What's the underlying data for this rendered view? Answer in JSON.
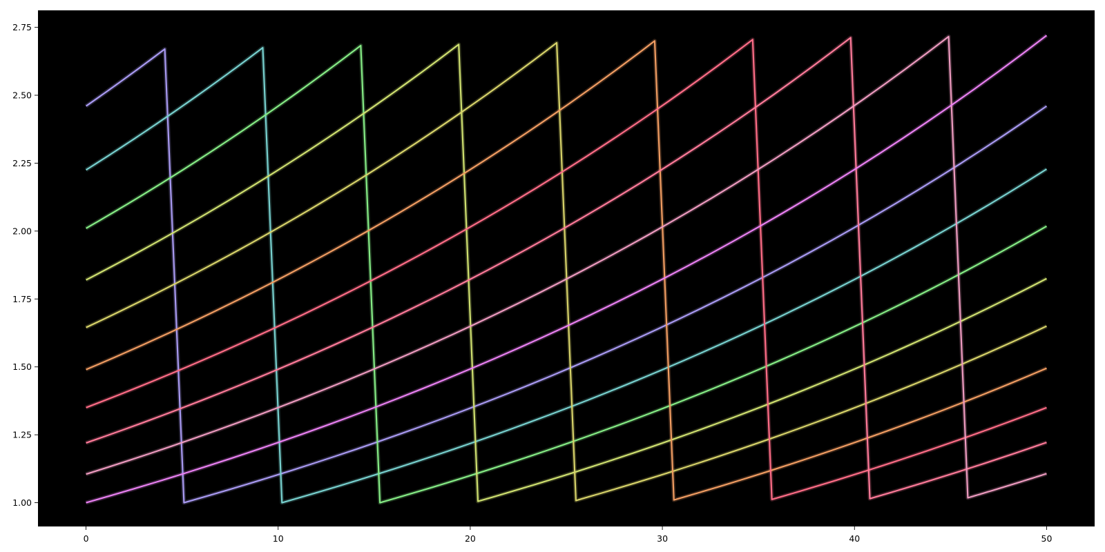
{
  "chart_data": {
    "type": "line",
    "title": "",
    "xlabel": "",
    "ylabel": "",
    "xlim": [
      -2.5,
      52.5
    ],
    "ylim": [
      0.9125,
      2.8125
    ],
    "xticks": [
      0,
      10,
      20,
      30,
      40,
      50
    ],
    "yticks": [
      1.0,
      1.25,
      1.5,
      1.75,
      2.0,
      2.25,
      2.5,
      2.75
    ],
    "xtick_labels": [
      "0",
      "10",
      "20",
      "30",
      "40",
      "50"
    ],
    "ytick_labels": [
      "1.00",
      "1.25",
      "1.50",
      "1.75",
      "2.00",
      "2.25",
      "2.50",
      "2.75"
    ],
    "grid": false,
    "legend": false,
    "background_color": "#000000",
    "series": [
      {
        "color": "#a99af2",
        "points": [
          [
            0,
            2.46
          ],
          [
            4.1,
            2.67
          ],
          [
            5.1,
            1.0
          ],
          [
            50,
            2.46
          ]
        ]
      },
      {
        "color": "#78d1cf",
        "points": [
          [
            0,
            2.225
          ],
          [
            9.2,
            2.675
          ],
          [
            10.2,
            1.0
          ],
          [
            50,
            2.228
          ]
        ]
      },
      {
        "color": "#86ec86",
        "points": [
          [
            0,
            2.01
          ],
          [
            14.3,
            2.683
          ],
          [
            15.3,
            1.0
          ],
          [
            50,
            2.018
          ]
        ]
      },
      {
        "color": "#cfe070",
        "points": [
          [
            0,
            1.82
          ],
          [
            19.4,
            2.687
          ],
          [
            20.4,
            1.005
          ],
          [
            50,
            1.825
          ]
        ]
      },
      {
        "color": "#d7d36a",
        "points": [
          [
            0,
            1.645
          ],
          [
            24.5,
            2.693
          ],
          [
            25.5,
            1.008
          ],
          [
            50,
            1.65
          ]
        ]
      },
      {
        "color": "#f19d62",
        "points": [
          [
            0,
            1.49
          ],
          [
            29.6,
            2.7
          ],
          [
            30.6,
            1.01
          ],
          [
            50,
            1.495
          ]
        ]
      },
      {
        "color": "#ff6d87",
        "points": [
          [
            0,
            1.35
          ],
          [
            34.7,
            2.705
          ],
          [
            35.7,
            1.012
          ],
          [
            50,
            1.35
          ]
        ]
      },
      {
        "color": "#ff7b9a",
        "points": [
          [
            0,
            1.22
          ],
          [
            39.8,
            2.712
          ],
          [
            40.8,
            1.015
          ],
          [
            50,
            1.222
          ]
        ]
      },
      {
        "color": "#ee9bc0",
        "points": [
          [
            0,
            1.105
          ],
          [
            44.9,
            2.716
          ],
          [
            45.9,
            1.018
          ],
          [
            50,
            1.107
          ]
        ]
      },
      {
        "color": "#ea81f2",
        "points": [
          [
            0,
            1.0
          ],
          [
            50,
            2.72
          ]
        ]
      }
    ]
  }
}
